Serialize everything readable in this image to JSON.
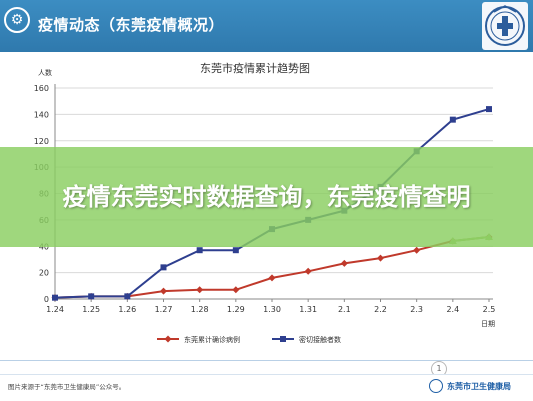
{
  "header": {
    "title": "疫情动态（东莞疫情概况）",
    "colors": {
      "bar": "#3582b9",
      "text": "#ffffff"
    }
  },
  "banner": {
    "text": "疫情东莞实时数据查询，东莞疫情查明",
    "color": "#8ace60"
  },
  "chart_data": {
    "type": "line",
    "title": "东莞市疫情累计趋势图",
    "ylabel": "人数",
    "xlabel": "日期",
    "categories": [
      "1.24",
      "1.25",
      "1.26",
      "1.27",
      "1.28",
      "1.29",
      "1.30",
      "1.31",
      "2.1",
      "2.2",
      "2.3",
      "2.4",
      "2.5"
    ],
    "ylim": [
      0,
      160
    ],
    "yticks": [
      "0",
      "20",
      "40",
      "60",
      "80",
      "100",
      "120",
      "140",
      "160"
    ],
    "grid": true,
    "legend": "bottom",
    "series": [
      {
        "name": "东莞累计确诊病例",
        "color": "#c0392b",
        "marker": "diamond",
        "values": [
          1,
          2,
          2,
          6,
          7,
          7,
          16,
          21,
          27,
          31,
          37,
          44,
          47
        ]
      },
      {
        "name": "密切接触者数",
        "color": "#2e3f8f",
        "marker": "square",
        "values": [
          1,
          2,
          2,
          24,
          37,
          37,
          53,
          60,
          67,
          85,
          112,
          136,
          144
        ]
      },
      {
        "name": "",
        "color": "#9ac56a",
        "marker": "triangle",
        "values": [
          null,
          null,
          null,
          null,
          null,
          null,
          null,
          null,
          null,
          null,
          null,
          44,
          47
        ]
      }
    ]
  },
  "footer": {
    "source": "图片来源于“东莞市卫生健康局”公众号。",
    "org": "东莞市卫生健康局",
    "page": "1"
  }
}
